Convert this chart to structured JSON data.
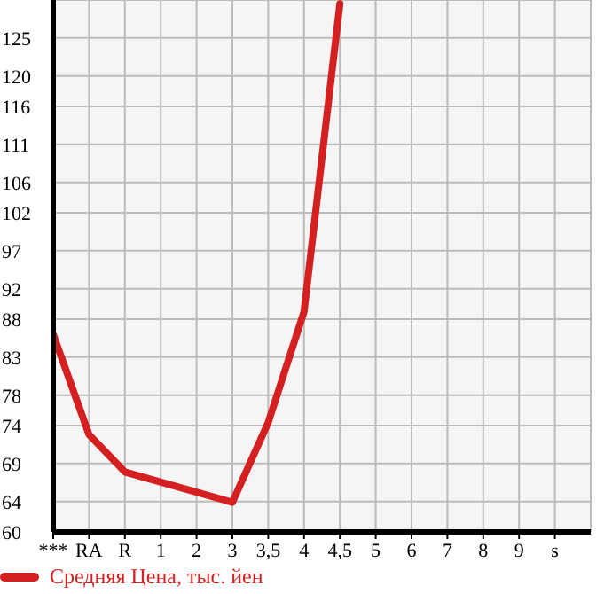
{
  "chart_data": {
    "type": "line",
    "categories": [
      "***",
      "RA",
      "R",
      "1",
      "2",
      "3",
      "3,5",
      "4",
      "4,5",
      "5",
      "6",
      "7",
      "8",
      "9",
      "s"
    ],
    "series": [
      {
        "name": "Средняя Цена, тыс. йен",
        "color": "#d42020",
        "values": [
          86.0,
          72.8,
          67.9,
          null,
          null,
          63.9,
          74.4,
          89.0,
          129.5,
          null,
          null,
          null,
          null,
          null,
          null
        ]
      }
    ],
    "ylim": [
      60,
      130
    ],
    "yticks": [
      60,
      64,
      69,
      74,
      78,
      83,
      88,
      92,
      97,
      102,
      106,
      111,
      116,
      120,
      125
    ],
    "grid": true,
    "legend": "bottom left",
    "marker": "none",
    "line_style": "solid"
  }
}
